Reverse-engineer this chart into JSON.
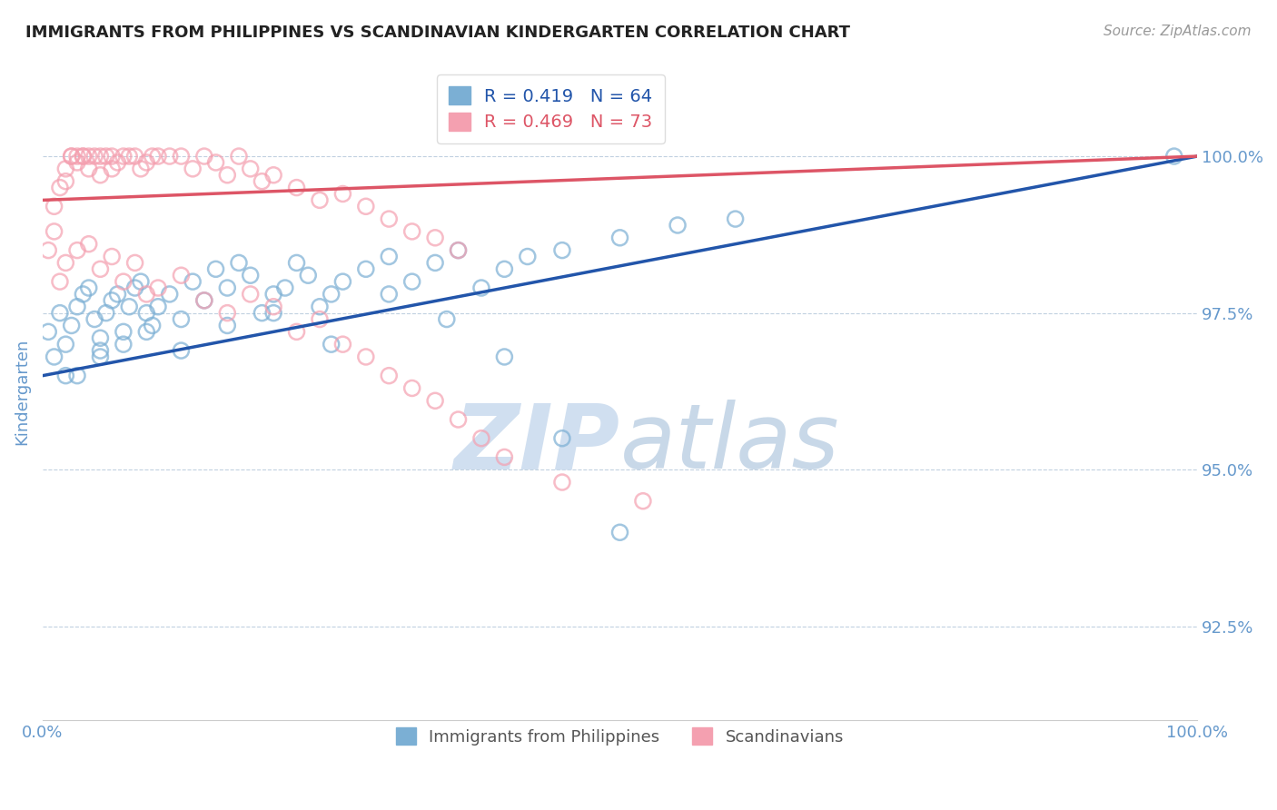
{
  "title": "IMMIGRANTS FROM PHILIPPINES VS SCANDINAVIAN KINDERGARTEN CORRELATION CHART",
  "source": "Source: ZipAtlas.com",
  "ylabel": "Kindergarten",
  "y_tick_values": [
    92.5,
    95.0,
    97.5,
    100.0
  ],
  "xlim": [
    0.0,
    100.0
  ],
  "ylim": [
    91.0,
    101.5
  ],
  "legend_labels": [
    "Immigrants from Philippines",
    "Scandinavians"
  ],
  "blue_R": 0.419,
  "blue_N": 64,
  "pink_R": 0.469,
  "pink_N": 73,
  "blue_color": "#7BAFD4",
  "pink_color": "#F4A0B0",
  "blue_line_color": "#2255AA",
  "pink_line_color": "#DD5566",
  "title_color": "#222222",
  "axis_label_color": "#6699CC",
  "grid_color": "#BBCCDD",
  "watermark_color": "#D0DFF0",
  "blue_scatter_x": [
    0.5,
    1.0,
    1.5,
    2.0,
    2.0,
    2.5,
    3.0,
    3.5,
    4.0,
    4.5,
    5.0,
    5.0,
    5.5,
    6.0,
    6.5,
    7.0,
    7.5,
    8.0,
    8.5,
    9.0,
    9.5,
    10.0,
    11.0,
    12.0,
    13.0,
    14.0,
    15.0,
    16.0,
    17.0,
    18.0,
    19.0,
    20.0,
    21.0,
    22.0,
    23.0,
    24.0,
    25.0,
    26.0,
    28.0,
    30.0,
    32.0,
    34.0,
    36.0,
    38.0,
    40.0,
    42.0,
    45.0,
    50.0,
    55.0,
    60.0,
    3.0,
    5.0,
    7.0,
    9.0,
    12.0,
    16.0,
    20.0,
    25.0,
    30.0,
    35.0,
    40.0,
    45.0,
    50.0,
    98.0
  ],
  "blue_scatter_y": [
    97.2,
    96.8,
    97.5,
    97.0,
    96.5,
    97.3,
    97.6,
    97.8,
    97.9,
    97.4,
    96.9,
    97.1,
    97.5,
    97.7,
    97.8,
    97.2,
    97.6,
    97.9,
    98.0,
    97.5,
    97.3,
    97.6,
    97.8,
    97.4,
    98.0,
    97.7,
    98.2,
    97.9,
    98.3,
    98.1,
    97.5,
    97.8,
    97.9,
    98.3,
    98.1,
    97.6,
    97.8,
    98.0,
    98.2,
    98.4,
    98.0,
    98.3,
    98.5,
    97.9,
    98.2,
    98.4,
    98.5,
    98.7,
    98.9,
    99.0,
    96.5,
    96.8,
    97.0,
    97.2,
    96.9,
    97.3,
    97.5,
    97.0,
    97.8,
    97.4,
    96.8,
    95.5,
    94.0,
    100.0
  ],
  "pink_scatter_x": [
    0.5,
    1.0,
    1.0,
    1.5,
    2.0,
    2.0,
    2.5,
    2.5,
    3.0,
    3.0,
    3.5,
    3.5,
    4.0,
    4.0,
    4.5,
    5.0,
    5.0,
    5.5,
    6.0,
    6.0,
    6.5,
    7.0,
    7.5,
    8.0,
    8.5,
    9.0,
    9.5,
    10.0,
    11.0,
    12.0,
    13.0,
    14.0,
    15.0,
    16.0,
    17.0,
    18.0,
    19.0,
    20.0,
    22.0,
    24.0,
    26.0,
    28.0,
    30.0,
    32.0,
    34.0,
    36.0,
    1.5,
    2.0,
    3.0,
    4.0,
    5.0,
    6.0,
    7.0,
    8.0,
    9.0,
    10.0,
    12.0,
    14.0,
    16.0,
    18.0,
    20.0,
    22.0,
    24.0,
    26.0,
    28.0,
    30.0,
    32.0,
    34.0,
    36.0,
    38.0,
    40.0,
    45.0,
    52.0
  ],
  "pink_scatter_y": [
    98.5,
    98.8,
    99.2,
    99.5,
    99.6,
    99.8,
    100.0,
    100.0,
    99.9,
    100.0,
    100.0,
    100.0,
    99.8,
    100.0,
    100.0,
    99.7,
    100.0,
    100.0,
    99.8,
    100.0,
    99.9,
    100.0,
    100.0,
    100.0,
    99.8,
    99.9,
    100.0,
    100.0,
    100.0,
    100.0,
    99.8,
    100.0,
    99.9,
    99.7,
    100.0,
    99.8,
    99.6,
    99.7,
    99.5,
    99.3,
    99.4,
    99.2,
    99.0,
    98.8,
    98.7,
    98.5,
    98.0,
    98.3,
    98.5,
    98.6,
    98.2,
    98.4,
    98.0,
    98.3,
    97.8,
    97.9,
    98.1,
    97.7,
    97.5,
    97.8,
    97.6,
    97.2,
    97.4,
    97.0,
    96.8,
    96.5,
    96.3,
    96.1,
    95.8,
    95.5,
    95.2,
    94.8,
    94.5
  ],
  "blue_line_start_x": 0.0,
  "blue_line_start_y": 96.5,
  "blue_line_end_x": 100.0,
  "blue_line_end_y": 100.0,
  "pink_line_start_x": 0.0,
  "pink_line_start_y": 99.3,
  "pink_line_end_x": 100.0,
  "pink_line_end_y": 100.0
}
